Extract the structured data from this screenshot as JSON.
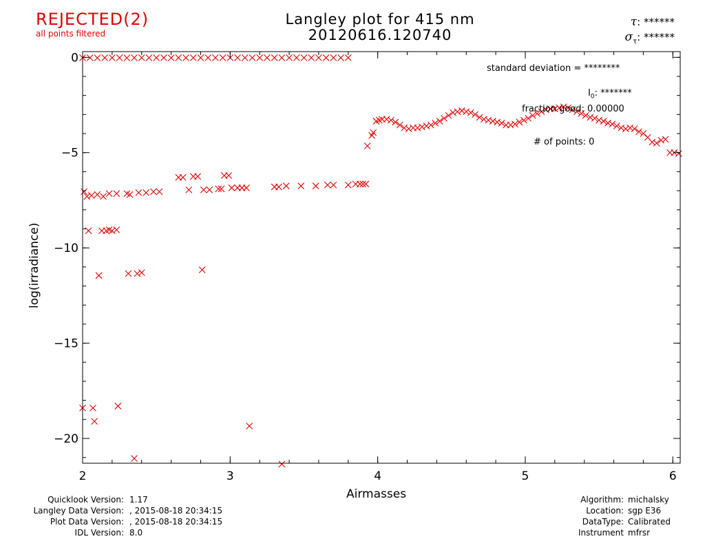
{
  "status": {
    "label": "REJECTED(2)",
    "sublabel": "all points filtered",
    "color": "#e00000"
  },
  "title": {
    "line1": "Langley plot for 415 nm",
    "line2": "20120616.120740"
  },
  "tau": {
    "symbol": "τ",
    "value": ": ******"
  },
  "sigma_tau": {
    "symbol": "σ",
    "subscript": "τ",
    "value": ": ******"
  },
  "stats": {
    "std_dev": "standard deviation  = ********",
    "i0_symbol": "I",
    "i0_subscript": "0",
    "i0_value": ": *******",
    "fraction_good": "fraction good: 0.00000",
    "num_points": "# of points:     0"
  },
  "footer_left": [
    {
      "label": "Quicklook Version:",
      "value": "1.17"
    },
    {
      "label": "Langley Data Version:",
      "value": ", 2015-08-18 20:34:15"
    },
    {
      "label": "Plot Data Version:",
      "value": ", 2015-08-18 20:34:15"
    },
    {
      "label": "IDL Version:",
      "value": "8.0"
    }
  ],
  "footer_right": [
    {
      "label": "Algorithm:",
      "value": "michalsky"
    },
    {
      "label": "Location:",
      "value": "sgp E36"
    },
    {
      "label": "DataType:",
      "value": "Calibrated"
    },
    {
      "label": "Instrument",
      "value": "mfrsr"
    }
  ],
  "chart_data": {
    "type": "scatter",
    "xlabel": "Airmasses",
    "ylabel": "log(irradiance)",
    "xlim": [
      2,
      6.05
    ],
    "ylim": [
      -21.3,
      0.3
    ],
    "xticks": [
      2,
      3,
      4,
      5,
      6
    ],
    "yticks": [
      0,
      -5,
      -10,
      -15,
      -20
    ],
    "grid": false,
    "marker": "x",
    "color": "#e00000",
    "points": [
      [
        2.0,
        -0.02
      ],
      [
        2.05,
        -0.02
      ],
      [
        2.1,
        -0.03
      ],
      [
        2.15,
        -0.02
      ],
      [
        2.2,
        -0.02
      ],
      [
        2.25,
        -0.02
      ],
      [
        2.3,
        -0.03
      ],
      [
        2.35,
        -0.02
      ],
      [
        2.4,
        -0.02
      ],
      [
        2.45,
        -0.02
      ],
      [
        2.5,
        -0.02
      ],
      [
        2.55,
        -0.02
      ],
      [
        2.6,
        -0.03
      ],
      [
        2.65,
        -0.02
      ],
      [
        2.7,
        -0.02
      ],
      [
        2.75,
        -0.02
      ],
      [
        2.8,
        -0.02
      ],
      [
        2.85,
        -0.02
      ],
      [
        2.9,
        -0.02
      ],
      [
        2.95,
        -0.02
      ],
      [
        3.0,
        -0.02
      ],
      [
        3.05,
        -0.02
      ],
      [
        3.1,
        -0.02
      ],
      [
        3.15,
        -0.02
      ],
      [
        3.2,
        -0.02
      ],
      [
        3.25,
        -0.02
      ],
      [
        3.3,
        -0.02
      ],
      [
        3.35,
        -0.02
      ],
      [
        3.4,
        -0.02
      ],
      [
        3.45,
        -0.02
      ],
      [
        3.5,
        -0.02
      ],
      [
        3.55,
        -0.02
      ],
      [
        3.6,
        -0.02
      ],
      [
        3.65,
        -0.02
      ],
      [
        3.7,
        -0.02
      ],
      [
        3.75,
        -0.02
      ],
      [
        3.8,
        -0.02
      ],
      [
        2.01,
        -7.05
      ],
      [
        2.03,
        -7.3
      ],
      [
        2.06,
        -7.25
      ],
      [
        2.1,
        -7.2
      ],
      [
        2.14,
        -7.3
      ],
      [
        2.18,
        -7.15
      ],
      [
        2.23,
        -7.15
      ],
      [
        2.3,
        -7.15
      ],
      [
        2.32,
        -7.2
      ],
      [
        2.38,
        -7.1
      ],
      [
        2.43,
        -7.1
      ],
      [
        2.48,
        -7.05
      ],
      [
        2.52,
        -7.05
      ],
      [
        2.04,
        -9.1
      ],
      [
        2.13,
        -9.1
      ],
      [
        2.16,
        -9.1
      ],
      [
        2.18,
        -9.05
      ],
      [
        2.2,
        -9.1
      ],
      [
        2.23,
        -9.05
      ],
      [
        2.11,
        -11.45
      ],
      [
        2.31,
        -11.35
      ],
      [
        2.37,
        -11.35
      ],
      [
        2.4,
        -11.3
      ],
      [
        2.0,
        -18.4
      ],
      [
        2.07,
        -18.4
      ],
      [
        2.08,
        -19.1
      ],
      [
        2.24,
        -18.3
      ],
      [
        2.35,
        -21.05
      ],
      [
        3.13,
        -19.35
      ],
      [
        3.35,
        -21.35
      ],
      [
        2.81,
        -11.15
      ],
      [
        2.65,
        -6.3
      ],
      [
        2.68,
        -6.3
      ],
      [
        2.72,
        -6.95
      ],
      [
        2.75,
        -6.25
      ],
      [
        2.78,
        -6.25
      ],
      [
        2.82,
        -6.95
      ],
      [
        2.86,
        -6.95
      ],
      [
        2.92,
        -6.9
      ],
      [
        2.94,
        -6.9
      ],
      [
        2.96,
        -6.2
      ],
      [
        2.99,
        -6.2
      ],
      [
        3.01,
        -6.85
      ],
      [
        3.05,
        -6.85
      ],
      [
        3.08,
        -6.85
      ],
      [
        3.11,
        -6.85
      ],
      [
        3.3,
        -6.8
      ],
      [
        3.33,
        -6.8
      ],
      [
        3.38,
        -6.75
      ],
      [
        3.48,
        -6.75
      ],
      [
        3.58,
        -6.75
      ],
      [
        3.66,
        -6.7
      ],
      [
        3.7,
        -6.7
      ],
      [
        3.8,
        -6.7
      ],
      [
        3.85,
        -6.65
      ],
      [
        3.88,
        -6.65
      ],
      [
        3.9,
        -6.65
      ],
      [
        3.92,
        -6.65
      ],
      [
        3.93,
        -4.65
      ],
      [
        3.96,
        -4.1
      ],
      [
        3.97,
        -3.95
      ],
      [
        3.99,
        -3.35
      ],
      [
        4.01,
        -3.3
      ],
      [
        4.03,
        -3.25
      ],
      [
        4.06,
        -3.25
      ],
      [
        4.09,
        -3.3
      ],
      [
        4.12,
        -3.4
      ],
      [
        4.15,
        -3.55
      ],
      [
        4.18,
        -3.7
      ],
      [
        4.21,
        -3.75
      ],
      [
        4.24,
        -3.7
      ],
      [
        4.27,
        -3.7
      ],
      [
        4.3,
        -3.65
      ],
      [
        4.33,
        -3.6
      ],
      [
        4.36,
        -3.55
      ],
      [
        4.39,
        -3.45
      ],
      [
        4.42,
        -3.35
      ],
      [
        4.45,
        -3.2
      ],
      [
        4.48,
        -3.05
      ],
      [
        4.51,
        -2.9
      ],
      [
        4.54,
        -2.85
      ],
      [
        4.57,
        -2.8
      ],
      [
        4.6,
        -2.85
      ],
      [
        4.63,
        -2.9
      ],
      [
        4.66,
        -3.0
      ],
      [
        4.69,
        -3.15
      ],
      [
        4.72,
        -3.25
      ],
      [
        4.75,
        -3.3
      ],
      [
        4.78,
        -3.35
      ],
      [
        4.81,
        -3.4
      ],
      [
        4.84,
        -3.45
      ],
      [
        4.87,
        -3.55
      ],
      [
        4.9,
        -3.55
      ],
      [
        4.93,
        -3.5
      ],
      [
        4.96,
        -3.4
      ],
      [
        4.99,
        -3.3
      ],
      [
        5.02,
        -3.2
      ],
      [
        5.05,
        -3.05
      ],
      [
        5.08,
        -2.95
      ],
      [
        5.11,
        -2.85
      ],
      [
        5.14,
        -2.75
      ],
      [
        5.17,
        -2.7
      ],
      [
        5.2,
        -2.7
      ],
      [
        5.23,
        -2.65
      ],
      [
        5.26,
        -2.6
      ],
      [
        5.29,
        -2.65
      ],
      [
        5.32,
        -2.75
      ],
      [
        5.35,
        -2.85
      ],
      [
        5.38,
        -2.95
      ],
      [
        5.41,
        -3.05
      ],
      [
        5.44,
        -3.15
      ],
      [
        5.47,
        -3.2
      ],
      [
        5.5,
        -3.3
      ],
      [
        5.53,
        -3.35
      ],
      [
        5.56,
        -3.45
      ],
      [
        5.59,
        -3.5
      ],
      [
        5.62,
        -3.6
      ],
      [
        5.65,
        -3.7
      ],
      [
        5.68,
        -3.75
      ],
      [
        5.71,
        -3.7
      ],
      [
        5.74,
        -3.75
      ],
      [
        5.77,
        -3.9
      ],
      [
        5.8,
        -4.0
      ],
      [
        5.83,
        -4.2
      ],
      [
        5.86,
        -4.45
      ],
      [
        5.89,
        -4.5
      ],
      [
        5.92,
        -4.35
      ],
      [
        5.95,
        -4.3
      ],
      [
        5.98,
        -5.0
      ],
      [
        6.01,
        -5.0
      ],
      [
        6.04,
        -5.05
      ]
    ]
  }
}
